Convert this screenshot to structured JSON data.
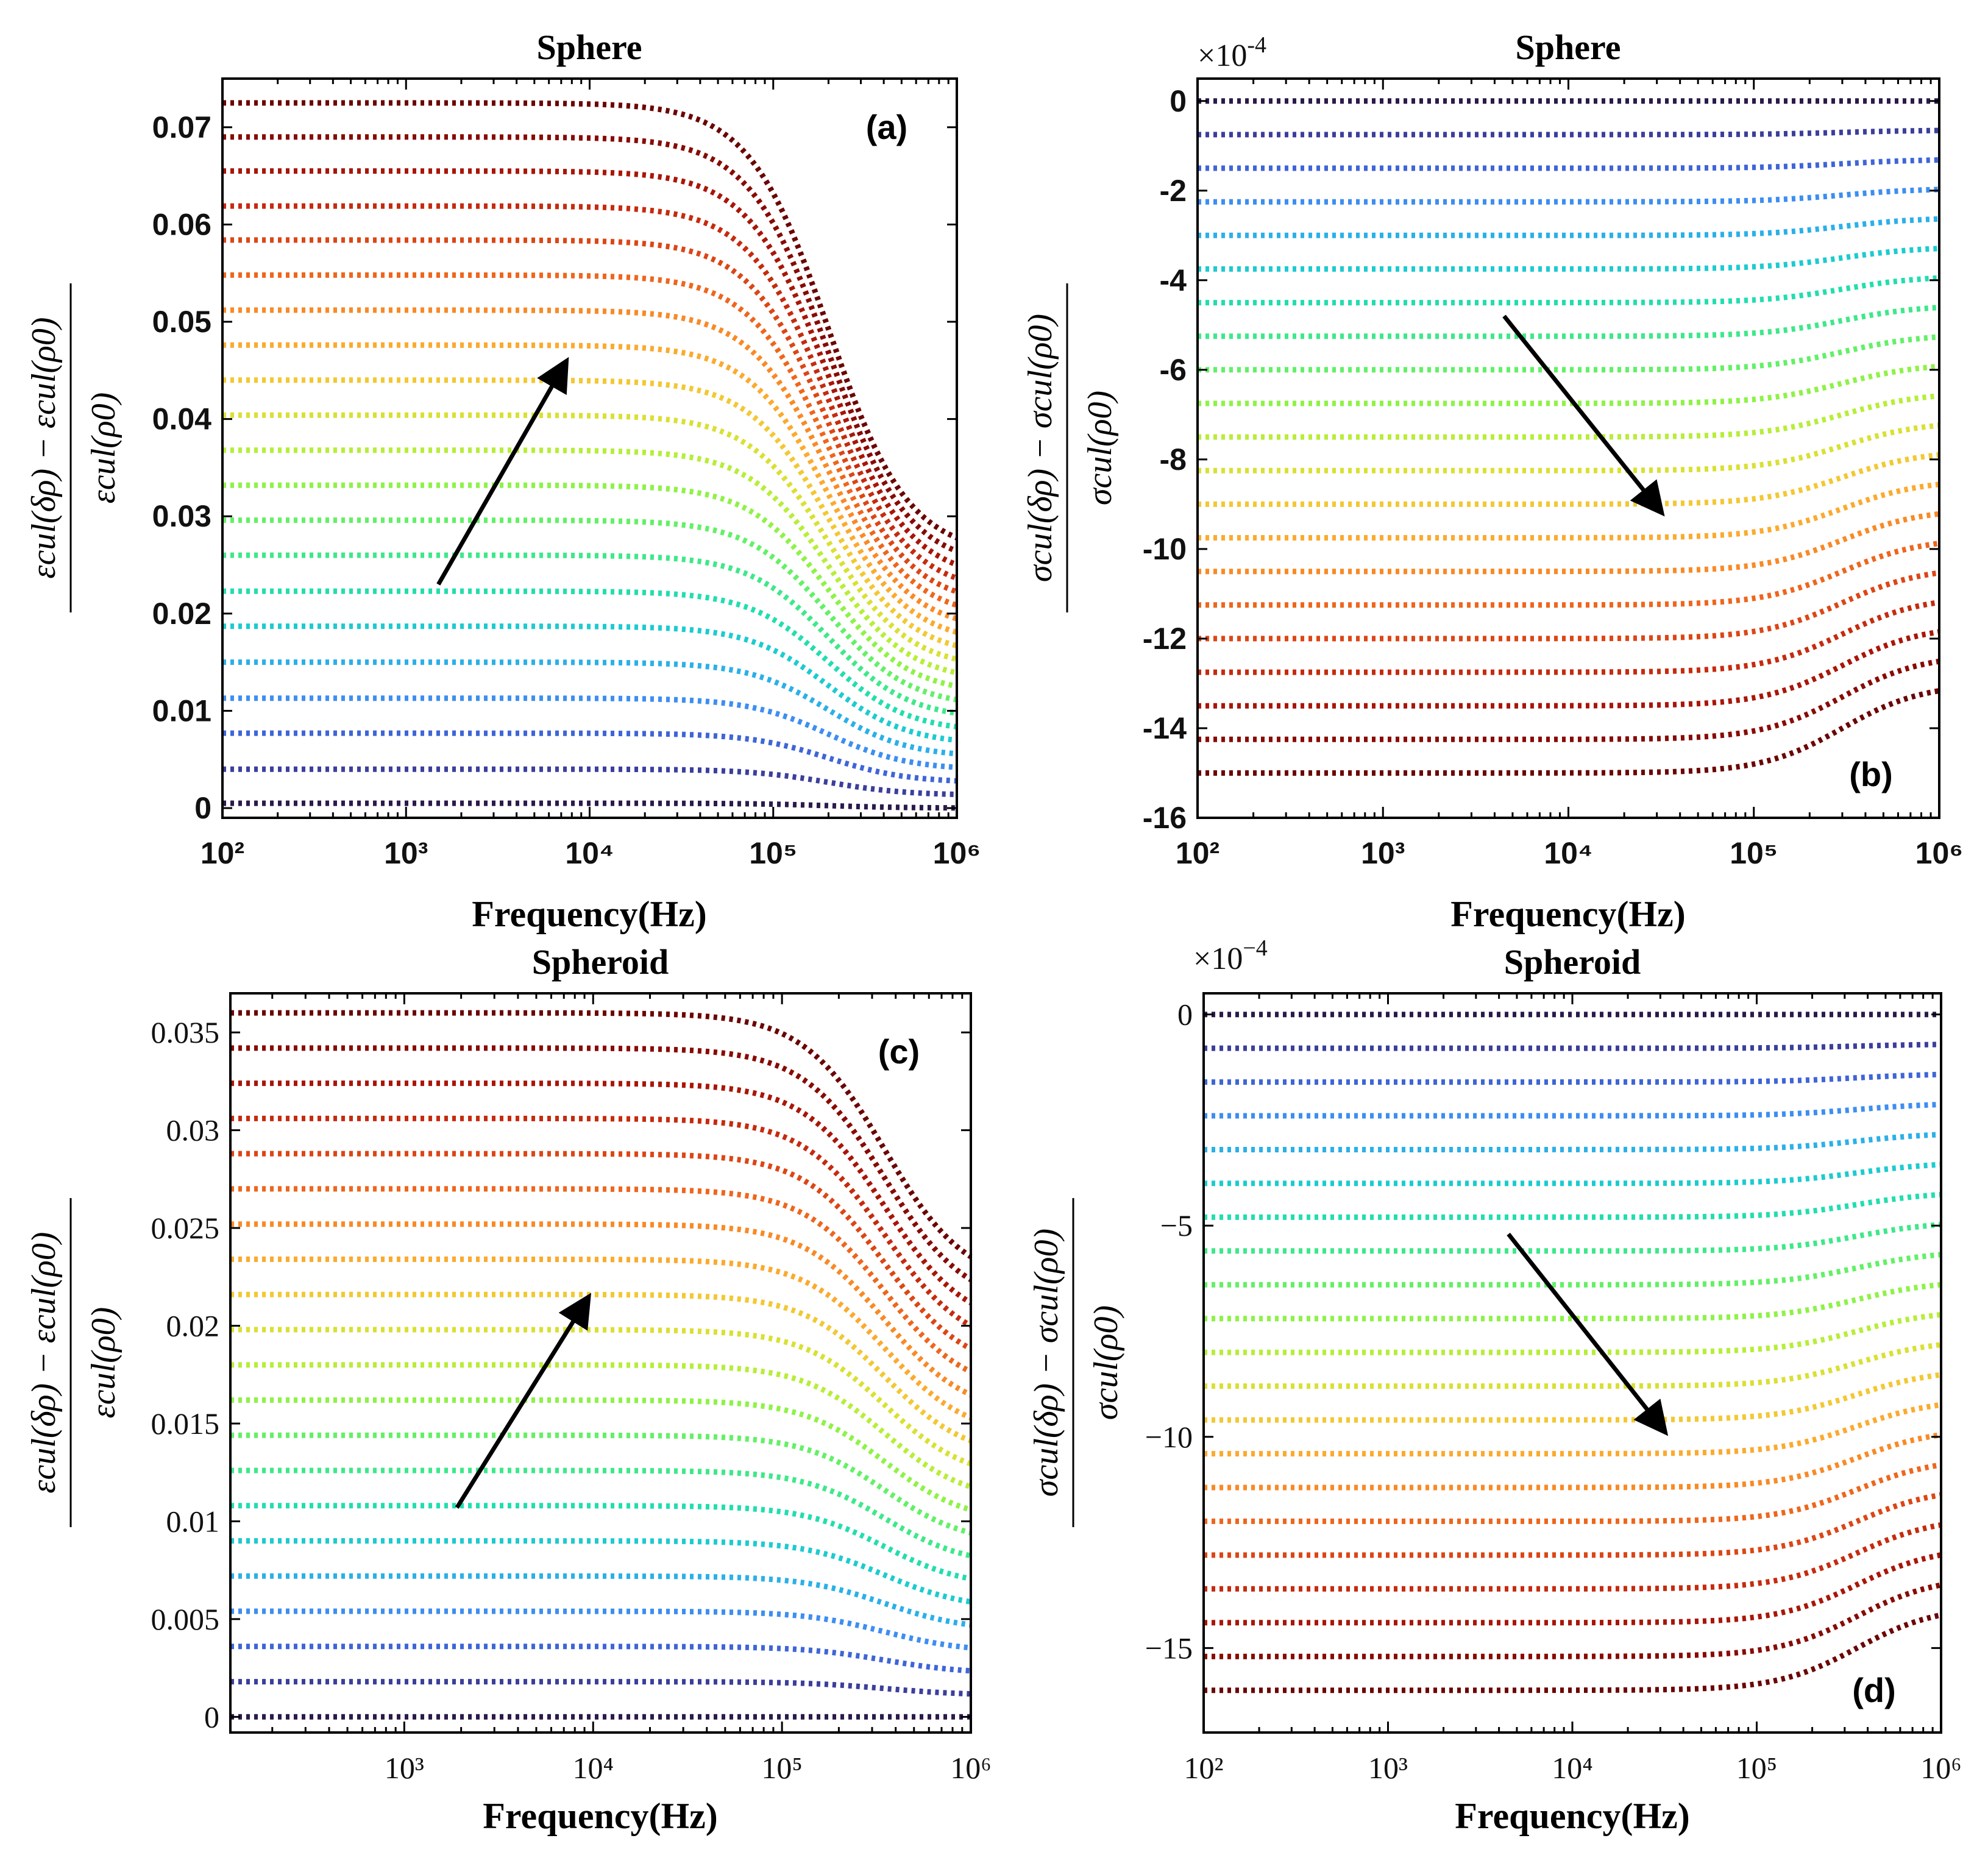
{
  "chart_data": [
    {
      "id": "a",
      "type": "line",
      "title": "Sphere",
      "panel_label": "(a)",
      "xlabel": "Frequency(Hz)",
      "ylabel_top": "εcul(δρ) − εcul(ρ0)",
      "ylabel_bottom": "εcul(ρ0)",
      "xscale": "log",
      "xlim": [
        100,
        1000000
      ],
      "ylim": [
        -0.001,
        0.075
      ],
      "yticks": [
        "0",
        "0.01",
        "0.02",
        "0.03",
        "0.04",
        "0.05",
        "0.06",
        "0.07"
      ],
      "ytick_values": [
        0,
        0.01,
        0.02,
        0.03,
        0.04,
        0.05,
        0.06,
        0.07
      ],
      "xticks": [
        "10²",
        "10³",
        "10⁴",
        "10⁵",
        "10⁶"
      ],
      "xtick_values": [
        100,
        1000,
        10000,
        100000,
        1000000
      ],
      "multiplier": "",
      "series_count": 21,
      "low_freq_values": [
        0.0005,
        0.004,
        0.0077,
        0.0113,
        0.015,
        0.0187,
        0.0223,
        0.026,
        0.0296,
        0.0332,
        0.0368,
        0.0404,
        0.044,
        0.0476,
        0.0512,
        0.0548,
        0.0584,
        0.0619,
        0.0655,
        0.069,
        0.0725
      ],
      "high_freq_values": [
        0.0,
        0.0013,
        0.0026,
        0.0039,
        0.0052,
        0.0065,
        0.0078,
        0.0091,
        0.0104,
        0.0117,
        0.013,
        0.0143,
        0.0156,
        0.0169,
        0.0182,
        0.0195,
        0.0208,
        0.0221,
        0.0234,
        0.0247,
        0.026
      ],
      "transition_freq_hz": 200000,
      "arrow": {
        "from": [
          1500,
          0.023
        ],
        "to": [
          7500,
          0.046
        ],
        "note": "increasing δρ"
      },
      "tick_style": "bold-sans"
    },
    {
      "id": "b",
      "type": "line",
      "title": "Sphere",
      "panel_label": "(b)",
      "xlabel": "Frequency(Hz)",
      "ylabel_top": "σcul(δρ) − σcul(ρ0)",
      "ylabel_bottom": "σcul(ρ0)",
      "xscale": "log",
      "xlim": [
        100,
        1000000
      ],
      "ylim": [
        -16,
        0.5
      ],
      "yticks": [
        "0",
        "-2",
        "-4",
        "-6",
        "-8",
        "-10",
        "-12",
        "-14",
        "-16"
      ],
      "ytick_values": [
        0,
        -2,
        -4,
        -6,
        -8,
        -10,
        -12,
        -14,
        -16
      ],
      "xticks": [
        "10²",
        "10³",
        "10⁴",
        "10⁵",
        "10⁶"
      ],
      "xtick_values": [
        100,
        1000,
        10000,
        100000,
        1000000
      ],
      "multiplier": "×10",
      "multiplier_exp": "-4",
      "series_count": 21,
      "low_freq_values": [
        0,
        -0.75,
        -1.5,
        -2.25,
        -3.0,
        -3.75,
        -4.5,
        -5.25,
        -6.0,
        -6.75,
        -7.5,
        -8.25,
        -9.0,
        -9.75,
        -10.5,
        -11.25,
        -12.0,
        -12.75,
        -13.5,
        -14.25,
        -15.0
      ],
      "high_freq_values": [
        0,
        -0.65,
        -1.3,
        -1.95,
        -2.6,
        -3.25,
        -3.9,
        -4.55,
        -5.2,
        -5.85,
        -6.5,
        -7.15,
        -7.8,
        -8.45,
        -9.1,
        -9.75,
        -10.4,
        -11.05,
        -11.7,
        -12.35,
        -13.0
      ],
      "transition_freq_hz": 300000,
      "arrow": {
        "from": [
          4500,
          -4.8
        ],
        "to": [
          32000,
          -9.2
        ],
        "note": "increasing δρ"
      },
      "tick_style": "bold-sans"
    },
    {
      "id": "c",
      "type": "line",
      "title": "Spheroid",
      "panel_label": "(c)",
      "xlabel": "Frequency(Hz)",
      "ylabel_top": "εcul(δρ) − εcul(ρ0)",
      "ylabel_bottom": "εcul(ρ0)",
      "xscale": "log",
      "xlim": [
        120,
        1000000
      ],
      "ylim": [
        -0.0008,
        0.037
      ],
      "yticks": [
        "0",
        "0.005",
        "0.01",
        "0.015",
        "0.02",
        "0.025",
        "0.03",
        "0.035"
      ],
      "ytick_values": [
        0,
        0.005,
        0.01,
        0.015,
        0.02,
        0.025,
        0.03,
        0.035
      ],
      "xticks": [
        "10³",
        "10⁴",
        "10⁵",
        "10⁶"
      ],
      "xtick_values": [
        1000,
        10000,
        100000,
        1000000
      ],
      "multiplier": "",
      "series_count": 21,
      "low_freq_values": [
        0.0,
        0.0018,
        0.0036,
        0.0054,
        0.0072,
        0.009,
        0.0108,
        0.0126,
        0.0144,
        0.0162,
        0.018,
        0.0198,
        0.0216,
        0.0234,
        0.0252,
        0.027,
        0.0288,
        0.0306,
        0.0324,
        0.0342,
        0.036
      ],
      "high_freq_values": [
        0.0,
        0.0011,
        0.0022,
        0.0033,
        0.0044,
        0.0055,
        0.0066,
        0.0077,
        0.0088,
        0.0099,
        0.011,
        0.0121,
        0.0132,
        0.0143,
        0.0154,
        0.0165,
        0.0176,
        0.0187,
        0.0198,
        0.0209,
        0.022
      ],
      "transition_freq_hz": 350000,
      "arrow": {
        "from": [
          1900,
          0.0107
        ],
        "to": [
          9500,
          0.0215
        ],
        "note": "increasing δρ"
      },
      "tick_style": "serif"
    },
    {
      "id": "d",
      "type": "line",
      "title": "Spheroid",
      "panel_label": "(d)",
      "xlabel": "Frequency(Hz)",
      "ylabel_top": "σcul(δρ) − σcul(ρ0)",
      "ylabel_bottom": "σcul(ρ0)",
      "xscale": "log",
      "xlim": [
        100,
        1000000
      ],
      "ylim": [
        -17,
        0.5
      ],
      "yticks": [
        "0",
        "−5",
        "−10",
        "−15"
      ],
      "ytick_values": [
        0,
        -5,
        -10,
        -15
      ],
      "xticks": [
        "10²",
        "10³",
        "10⁴",
        "10⁵",
        "10⁶"
      ],
      "xtick_values": [
        100,
        1000,
        10000,
        100000,
        1000000
      ],
      "multiplier": "×10",
      "multiplier_exp": "−4",
      "series_count": 21,
      "low_freq_values": [
        0,
        -0.8,
        -1.6,
        -2.4,
        -3.2,
        -4.0,
        -4.8,
        -5.6,
        -6.4,
        -7.2,
        -8.0,
        -8.8,
        -9.6,
        -10.4,
        -11.2,
        -12.0,
        -12.8,
        -13.6,
        -14.4,
        -15.2,
        -16.0
      ],
      "high_freq_values": [
        0,
        -0.7,
        -1.4,
        -2.1,
        -2.8,
        -3.5,
        -4.2,
        -4.9,
        -5.6,
        -6.3,
        -7.0,
        -7.7,
        -8.4,
        -9.1,
        -9.8,
        -10.5,
        -11.2,
        -11.9,
        -12.6,
        -13.3,
        -14.0
      ],
      "transition_freq_hz": 350000,
      "arrow": {
        "from": [
          4500,
          -5.2
        ],
        "to": [
          32000,
          -9.9
        ],
        "note": "increasing δρ"
      },
      "tick_style": "serif"
    }
  ],
  "colormap": [
    "#2b1a4a",
    "#3b3f9b",
    "#3f65d6",
    "#3d8ef0",
    "#2bb0e8",
    "#1ccbd0",
    "#22ddb0",
    "#3ee88a",
    "#63f066",
    "#8ef247",
    "#b6ee38",
    "#d9e033",
    "#f2c833",
    "#fbaa2e",
    "#f88a26",
    "#ee661c",
    "#dc4615",
    "#c52b0e",
    "#a81607",
    "#870b04",
    "#6b0503"
  ]
}
